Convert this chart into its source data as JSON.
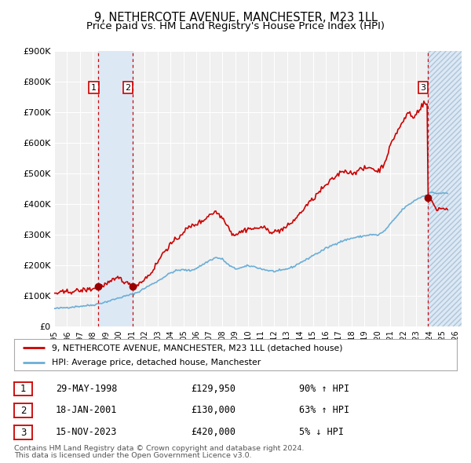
{
  "title": "9, NETHERCOTE AVENUE, MANCHESTER, M23 1LL",
  "subtitle": "Price paid vs. HM Land Registry's House Price Index (HPI)",
  "ylim": [
    0,
    900000
  ],
  "xlim_start": 1995.0,
  "xlim_end": 2026.5,
  "ytick_labels": [
    "£0",
    "£100K",
    "£200K",
    "£300K",
    "£400K",
    "£500K",
    "£600K",
    "£700K",
    "£800K",
    "£900K"
  ],
  "ytick_values": [
    0,
    100000,
    200000,
    300000,
    400000,
    500000,
    600000,
    700000,
    800000,
    900000
  ],
  "xtick_years": [
    1995,
    1996,
    1997,
    1998,
    1999,
    2000,
    2001,
    2002,
    2003,
    2004,
    2005,
    2006,
    2007,
    2008,
    2009,
    2010,
    2011,
    2012,
    2013,
    2014,
    2015,
    2016,
    2017,
    2018,
    2019,
    2020,
    2021,
    2022,
    2023,
    2024,
    2025,
    2026
  ],
  "hpi_color": "#6baed6",
  "price_color": "#cc0000",
  "dot_color": "#990000",
  "bg_chart": "#f0f0f0",
  "bg_figure": "#ffffff",
  "grid_color": "#ffffff",
  "shade_color": "#dce9f5",
  "hatch_color": "#c8d8eb",
  "legend_label_red": "9, NETHERCOTE AVENUE, MANCHESTER, M23 1LL (detached house)",
  "legend_label_blue": "HPI: Average price, detached house, Manchester",
  "transactions": [
    {
      "num": 1,
      "date": "29-MAY-1998",
      "price": 129950,
      "price_str": "£129,950",
      "pct": "90%",
      "dir": "↑",
      "year": 1998.41
    },
    {
      "num": 2,
      "date": "18-JAN-2001",
      "price": 130000,
      "price_str": "£130,000",
      "pct": "63%",
      "dir": "↑",
      "year": 2001.05
    },
    {
      "num": 3,
      "date": "15-NOV-2023",
      "price": 420000,
      "price_str": "£420,000",
      "pct": "5%",
      "dir": "↓",
      "year": 2023.87
    }
  ],
  "footer_line1": "Contains HM Land Registry data © Crown copyright and database right 2024.",
  "footer_line2": "This data is licensed under the Open Government Licence v3.0.",
  "title_fontsize": 10.5,
  "subtitle_fontsize": 9.5
}
